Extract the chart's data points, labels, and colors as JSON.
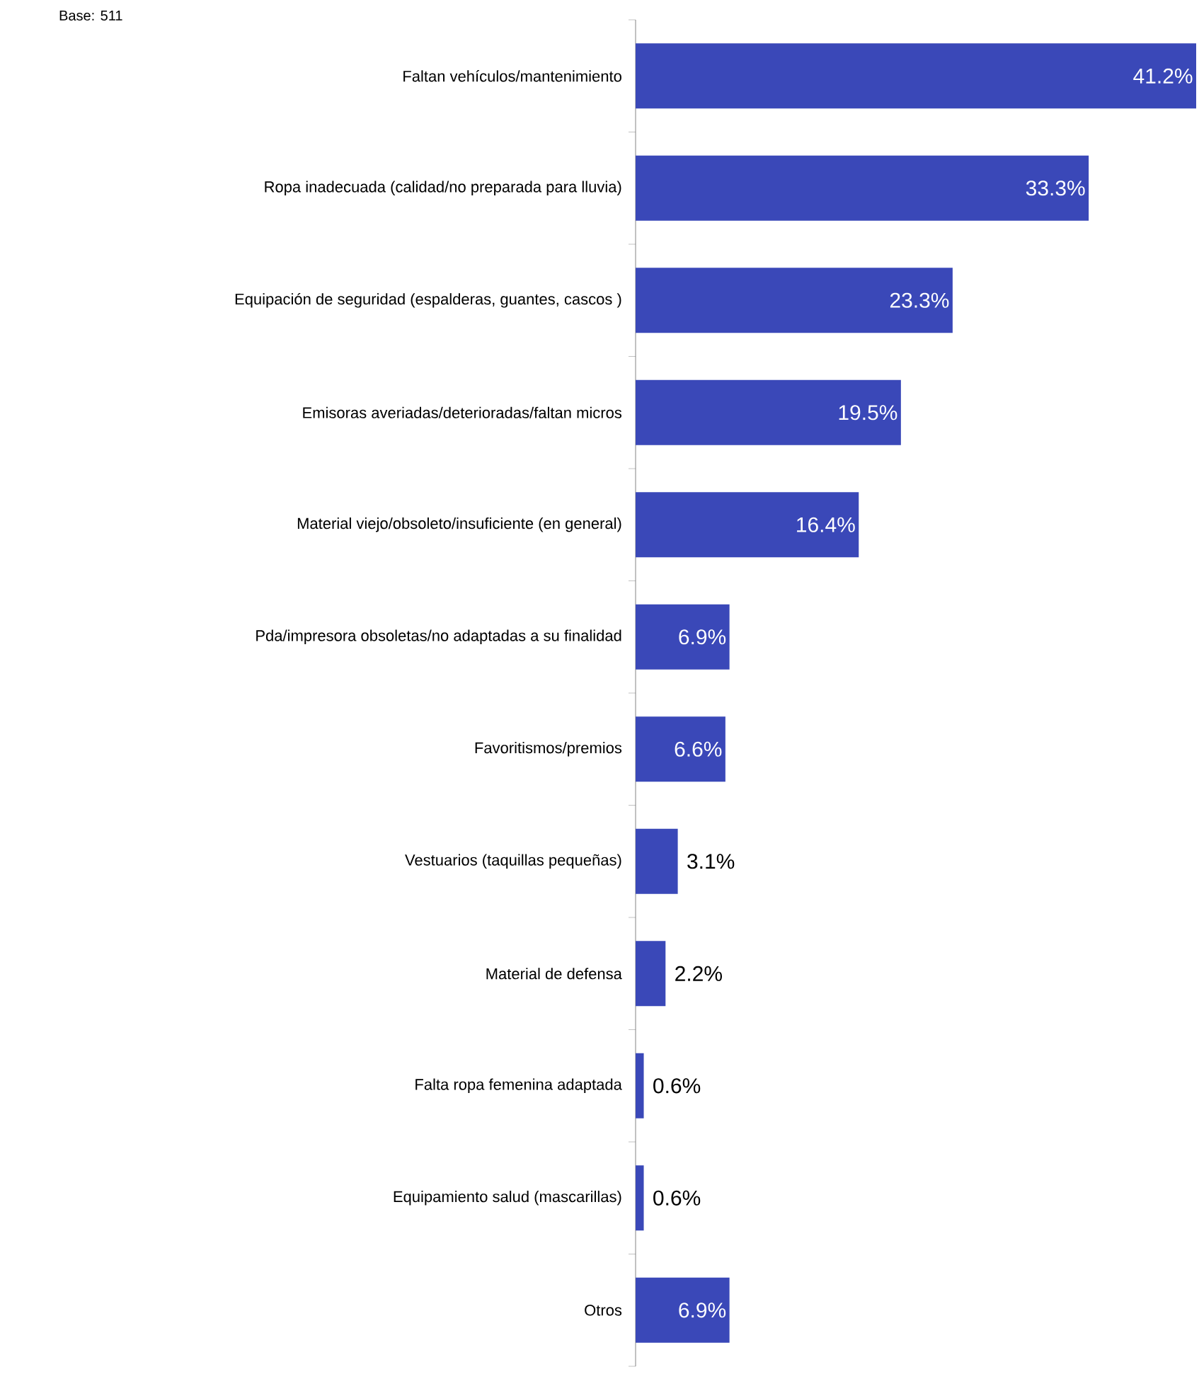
{
  "chart_data": {
    "type": "bar",
    "orientation": "horizontal",
    "color": "#3a48b8",
    "categories": [
      "Faltan vehículos/mantenimiento",
      "Ropa inadecuada (calidad/no preparada para lluvia)",
      "Equipación de seguridad (espalderas, guantes, cascos )",
      "Emisoras averiadas/deterioradas/faltan micros",
      "Material viejo/obsoleto/insuficiente (en general)",
      "Pda/impresora obsoletas/no adaptadas a su finalidad",
      "Favoritismos/premios",
      "Vestuarios (taquillas pequeñas)",
      "Material de defensa",
      "Falta ropa femenina adaptada",
      "Equipamiento salud (mascarillas)",
      "Otros"
    ],
    "values": [
      41.2,
      33.3,
      23.3,
      19.5,
      16.4,
      6.9,
      6.6,
      3.1,
      2.2,
      0.6,
      0.6,
      6.9
    ],
    "value_labels": [
      "41.2%",
      "33.3%",
      "23.3%",
      "19.5%",
      "16.4%",
      "6.9%",
      "6.6%",
      "3.1%",
      "2.2%",
      "0.6%",
      "0.6%",
      "6.9%"
    ],
    "annotations": [
      "Base: 511"
    ]
  }
}
